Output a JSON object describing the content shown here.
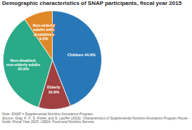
{
  "chart_data": {
    "type": "pie",
    "title": "Demographic characteristics of SNAP participants, fiscal year 2015",
    "values": [
      44.0,
      10.6,
      35.9,
      9.5
    ],
    "value_labels": [
      "Children 44.0%",
      "Elderly\n10.6%",
      "Non-disabled,\nnon-elderly adults\n35.9%",
      "Non-elderly\nadults with\ndisabilities\n9.5%"
    ],
    "colors": [
      "#2878b8",
      "#a04040",
      "#2aaa88",
      "#e08828"
    ],
    "data_labels": true,
    "annotations": [
      "Note: SNAP = Supplemental Nutrition Assistance Program.",
      "Source: Gray, K. F., S. Fisher, and S. Lauffer (2016). Characteristics of Supplemental Nutrition Assistance Program House-",
      "holds: Fiscal Year 2015. USDA, Food and Nutrition Service."
    ]
  }
}
